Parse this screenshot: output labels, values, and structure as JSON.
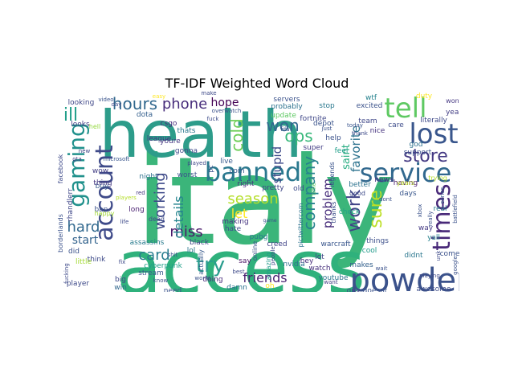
{
  "chart_data": {
    "type": "word_cloud",
    "title": "TF-IDF Weighted Word Cloud",
    "colormap": "viridis",
    "background": "#ffffff",
    "words": [
      {
        "text": "italy",
        "weight": 100
      },
      {
        "text": "access",
        "weight": 88
      },
      {
        "text": "health",
        "weight": 80
      },
      {
        "text": "powder",
        "weight": 46
      },
      {
        "text": "banned",
        "weight": 44
      },
      {
        "text": "service",
        "weight": 42
      },
      {
        "text": "tell",
        "weight": 40
      },
      {
        "text": "lost",
        "weight": 40
      },
      {
        "text": "account",
        "weight": 36
      },
      {
        "text": "gaming",
        "weight": 34
      },
      {
        "text": "times",
        "weight": 34
      },
      {
        "text": "try",
        "weight": 30
      },
      {
        "text": "hours",
        "weight": 26
      },
      {
        "text": "store",
        "weight": 26
      },
      {
        "text": "work",
        "weight": 26
      },
      {
        "text": "sure",
        "weight": 26
      },
      {
        "text": "company",
        "weight": 24
      },
      {
        "text": "cold",
        "weight": 22
      },
      {
        "text": "ops",
        "weight": 22
      },
      {
        "text": "won",
        "weight": 22
      },
      {
        "text": "season",
        "weight": 22
      },
      {
        "text": "phone",
        "weight": 20
      },
      {
        "text": "working",
        "weight": 20
      },
      {
        "text": "ill",
        "weight": 22
      },
      {
        "text": "hard",
        "weight": 20
      },
      {
        "text": "card",
        "weight": 20
      },
      {
        "text": "miss",
        "weight": 20
      },
      {
        "text": "let",
        "weight": 18
      },
      {
        "text": "friends",
        "weight": 18
      },
      {
        "text": "details",
        "weight": 18
      },
      {
        "text": "stupid",
        "weight": 16
      },
      {
        "text": "favorite",
        "weight": 16
      },
      {
        "text": "problem",
        "weight": 16
      },
      {
        "text": "start",
        "weight": 16
      },
      {
        "text": "hope",
        "weight": 14
      },
      {
        "text": "saint",
        "weight": 14
      },
      {
        "text": "wow",
        "weight": 10
      },
      {
        "text": "buy",
        "weight": 10
      },
      {
        "text": "ban",
        "weight": 10
      },
      {
        "text": "thing",
        "weight": 10
      },
      {
        "text": "long",
        "weight": 10
      },
      {
        "text": "night",
        "weight": 10
      },
      {
        "text": "worst",
        "weight": 10
      },
      {
        "text": "live",
        "weight": 10
      },
      {
        "text": "pretty",
        "weight": 10
      },
      {
        "text": "old",
        "weight": 10
      },
      {
        "text": "right",
        "weight": 10
      },
      {
        "text": "getting",
        "weight": 10
      },
      {
        "text": "making",
        "weight": 10
      },
      {
        "text": "hate",
        "weight": 10
      },
      {
        "text": "pubg",
        "weight": 10
      },
      {
        "text": "creed",
        "weight": 10
      },
      {
        "text": "black",
        "weight": 10
      },
      {
        "text": "lol",
        "weight": 10
      },
      {
        "text": "assassins",
        "weight": 10
      },
      {
        "text": "cyberpunk",
        "weight": 10
      },
      {
        "text": "stream",
        "weight": 10
      },
      {
        "text": "big",
        "weight": 10
      },
      {
        "text": "win",
        "weight": 10
      },
      {
        "text": "need",
        "weight": 10
      },
      {
        "text": "doing",
        "weight": 10
      },
      {
        "text": "say",
        "weight": 10
      },
      {
        "text": "amazing",
        "weight": 10
      },
      {
        "text": "nvidia",
        "weight": 10
      },
      {
        "text": "warcraft",
        "weight": 10
      },
      {
        "text": "makes",
        "weight": 10
      },
      {
        "text": "watch",
        "weight": 10
      },
      {
        "text": "youtube",
        "weight": 10
      },
      {
        "text": "guy",
        "weight": 10
      },
      {
        "text": "doesnt",
        "weight": 10
      },
      {
        "text": "awesome",
        "weight": 10
      },
      {
        "text": "didnt",
        "weight": 10
      },
      {
        "text": "come",
        "weight": 10
      },
      {
        "text": "yall",
        "weight": 10
      },
      {
        "text": "way",
        "weight": 10
      },
      {
        "text": "real",
        "weight": 10
      },
      {
        "text": "days",
        "weight": 10
      },
      {
        "text": "having",
        "weight": 10
      },
      {
        "text": "better",
        "weight": 10
      },
      {
        "text": "check",
        "weight": 10
      },
      {
        "text": "thanks",
        "weight": 10
      },
      {
        "text": "legends",
        "weight": 10
      },
      {
        "text": "help",
        "weight": 10
      },
      {
        "text": "super",
        "weight": 10
      },
      {
        "text": "fortnite",
        "weight": 10
      },
      {
        "text": "servers",
        "weight": 10
      },
      {
        "text": "probably",
        "weight": 10
      },
      {
        "text": "update",
        "weight": 10
      },
      {
        "text": "stop",
        "weight": 10
      },
      {
        "text": "depot",
        "weight": 10
      },
      {
        "text": "feel",
        "weight": 10
      },
      {
        "text": "cool",
        "weight": 10
      },
      {
        "text": "lot",
        "weight": 10
      },
      {
        "text": "hey",
        "weight": 10
      },
      {
        "text": "things",
        "weight": 10
      },
      {
        "text": "news",
        "weight": 10
      },
      {
        "text": "years",
        "weight": 10
      },
      {
        "text": "trying",
        "weight": 10
      },
      {
        "text": "support",
        "weight": 10
      },
      {
        "text": "god",
        "weight": 10
      },
      {
        "text": "team",
        "weight": 10
      },
      {
        "text": "nice",
        "weight": 10
      },
      {
        "text": "care",
        "weight": 10
      },
      {
        "text": "excited",
        "weight": 10
      },
      {
        "text": "wtf",
        "weight": 10
      },
      {
        "text": "duty",
        "weight": 10
      },
      {
        "text": "year",
        "weight": 10
      },
      {
        "text": "literally",
        "weight": 10
      },
      {
        "text": "baby",
        "weight": 10
      },
      {
        "text": "wont",
        "weight": 10
      },
      {
        "text": "looking",
        "weight": 10
      },
      {
        "text": "looks",
        "weight": 10
      },
      {
        "text": "dota",
        "weight": 10
      },
      {
        "text": "csgo",
        "weight": 10
      },
      {
        "text": "league",
        "weight": 10
      },
      {
        "text": "think",
        "weight": 10
      },
      {
        "text": "little",
        "weight": 10
      },
      {
        "text": "player",
        "weight": 10
      },
      {
        "text": "did",
        "weight": 10
      },
      {
        "text": "thats",
        "weight": 10
      },
      {
        "text": "youre",
        "weight": 10
      },
      {
        "text": "gonna",
        "weight": 10
      },
      {
        "text": "com",
        "weight": 10
      },
      {
        "text": "rhandlerr",
        "weight": 10
      },
      {
        "text": "pictwittercom",
        "weight": 10
      },
      {
        "text": "actually",
        "weight": 10
      },
      {
        "text": "online",
        "weight": 10
      },
      {
        "text": "damn",
        "weight": 10
      },
      {
        "text": "oh",
        "weight": 10
      },
      {
        "text": "people",
        "weight": 10
      },
      {
        "text": "game",
        "weight": 10
      },
      {
        "text": "played",
        "weight": 10
      },
      {
        "text": "pc",
        "weight": 10
      },
      {
        "text": "players",
        "weight": 10
      },
      {
        "text": "world",
        "weight": 10
      },
      {
        "text": "best",
        "weight": 10
      },
      {
        "text": "life",
        "weight": 10
      },
      {
        "text": "series",
        "weight": 10
      },
      {
        "text": "battlefield",
        "weight": 10
      },
      {
        "text": "borderlands",
        "weight": 10
      },
      {
        "text": "facebook",
        "weight": 10
      },
      {
        "text": "gta",
        "weight": 10
      },
      {
        "text": "new",
        "weight": 10
      },
      {
        "text": "red",
        "weight": 10
      },
      {
        "text": "unk",
        "weight": 10
      },
      {
        "text": "google",
        "weight": 10
      },
      {
        "text": "xbox",
        "weight": 10
      },
      {
        "text": "fifa",
        "weight": 10
      },
      {
        "text": "overwatch",
        "weight": 10
      },
      {
        "text": "microsoft",
        "weight": 10
      },
      {
        "text": "fuck",
        "weight": 10
      },
      {
        "text": "shit",
        "weight": 10
      },
      {
        "text": "fix",
        "weight": 10
      },
      {
        "text": "today",
        "weight": 10
      },
      {
        "text": "wait",
        "weight": 10
      },
      {
        "text": "want",
        "weight": 10
      },
      {
        "text": "playing",
        "weight": 10
      },
      {
        "text": "really",
        "weight": 10
      },
      {
        "text": "just",
        "weight": 10
      },
      {
        "text": "video",
        "weight": 10
      },
      {
        "text": "day",
        "weight": 10
      },
      {
        "text": "easy",
        "weight": 10
      },
      {
        "text": "hell",
        "weight": 10
      },
      {
        "text": "happy",
        "weight": 10
      },
      {
        "text": "know",
        "weight": 10
      },
      {
        "text": "dead",
        "weight": 10
      },
      {
        "text": "fucking",
        "weight": 10
      },
      {
        "text": "time",
        "weight": 10
      },
      {
        "text": "make",
        "weight": 10
      },
      {
        "text": "good",
        "weight": 10
      },
      {
        "text": "thank",
        "weight": 10
      },
      {
        "text": "dont",
        "weight": 10
      }
    ]
  }
}
